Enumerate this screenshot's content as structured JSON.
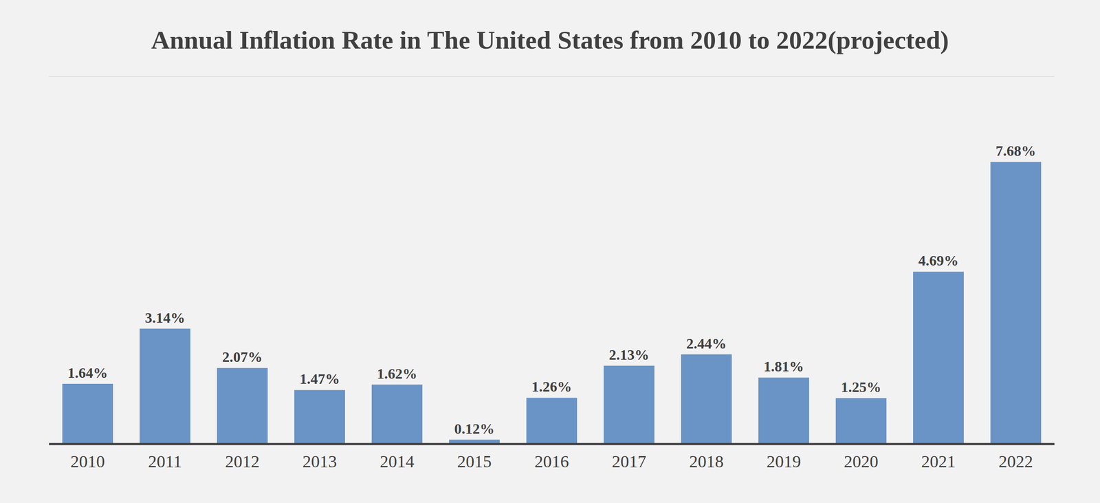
{
  "chart_data": {
    "type": "bar",
    "title": "Annual Inflation Rate in The United States from 2010 to 2022(projected)",
    "categories": [
      "2010",
      "2011",
      "2012",
      "2013",
      "2014",
      "2015",
      "2016",
      "2017",
      "2018",
      "2019",
      "2020",
      "2021",
      "2022"
    ],
    "values": [
      1.64,
      3.14,
      2.07,
      1.47,
      1.62,
      0.12,
      1.26,
      2.13,
      2.44,
      1.81,
      1.25,
      4.69,
      7.68
    ],
    "value_labels": [
      "1.64%",
      "3.14%",
      "2.07%",
      "1.47%",
      "1.62%",
      "0.12%",
      "1.26%",
      "2.13%",
      "2.44%",
      "1.81%",
      "1.25%",
      "4.69%",
      "7.68%"
    ],
    "color": "#6a93c6",
    "ylim": [
      0,
      10
    ],
    "yticks": [
      0,
      2,
      4,
      6,
      8,
      10
    ],
    "grid": true,
    "data_labels": true,
    "tick_labels": "x"
  }
}
